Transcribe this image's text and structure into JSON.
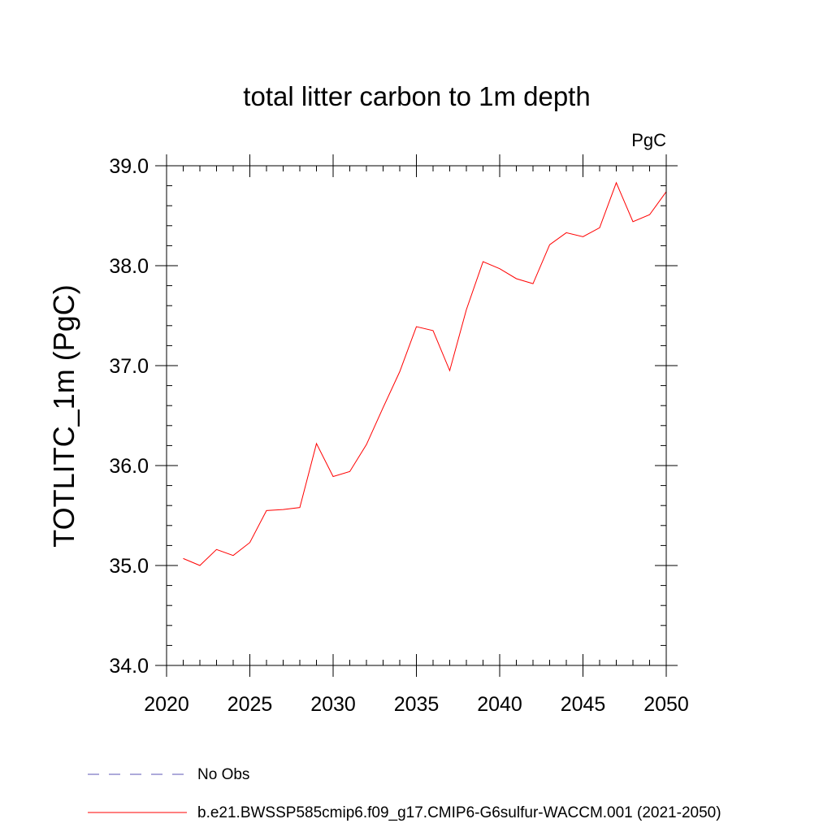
{
  "chart_data": {
    "type": "line",
    "title": "total litter carbon to 1m depth",
    "units_label": "PgC",
    "xlabel": "",
    "ylabel": "TOTLITC_1m  (PgC)",
    "xlim": [
      2020,
      2050
    ],
    "ylim": [
      34.0,
      39.0
    ],
    "x_ticks": [
      2020,
      2025,
      2030,
      2035,
      2040,
      2045,
      2050
    ],
    "x_tick_labels": [
      "2020",
      "2025",
      "2030",
      "2035",
      "2040",
      "2045",
      "2050"
    ],
    "y_ticks": [
      34.0,
      35.0,
      36.0,
      37.0,
      38.0,
      39.0
    ],
    "y_tick_labels": [
      "34.0",
      "35.0",
      "36.0",
      "37.0",
      "38.0",
      "39.0"
    ],
    "x_minor_step": 1,
    "y_minor_step": 0.2,
    "grid": false,
    "legend_position": "bottom",
    "series": [
      {
        "name": "b.e21.BWSSP585cmip6.f09_g17.CMIP6-G6sulfur-WACCM.001 (2021-2050)",
        "color": "#ff0000",
        "style": "solid",
        "x": [
          2021,
          2022,
          2023,
          2024,
          2025,
          2026,
          2027,
          2028,
          2029,
          2030,
          2031,
          2032,
          2033,
          2034,
          2035,
          2036,
          2037,
          2038,
          2039,
          2040,
          2041,
          2042,
          2043,
          2044,
          2045,
          2046,
          2047,
          2048,
          2049,
          2050
        ],
        "y": [
          35.07,
          35.0,
          35.16,
          35.1,
          35.23,
          35.55,
          35.56,
          35.58,
          36.22,
          35.89,
          35.94,
          36.21,
          36.58,
          36.94,
          37.39,
          37.35,
          36.95,
          37.56,
          38.04,
          37.97,
          37.87,
          37.82,
          38.21,
          38.33,
          38.29,
          38.38,
          38.83,
          38.44,
          38.51,
          38.74
        ]
      }
    ],
    "legend": [
      {
        "label": "No Obs",
        "color": "#5b55b5",
        "style": "dashed"
      },
      {
        "label": "b.e21.BWSSP585cmip6.f09_g17.CMIP6-G6sulfur-WACCM.001 (2021-2050)",
        "color": "#ff0000",
        "style": "solid"
      }
    ]
  }
}
